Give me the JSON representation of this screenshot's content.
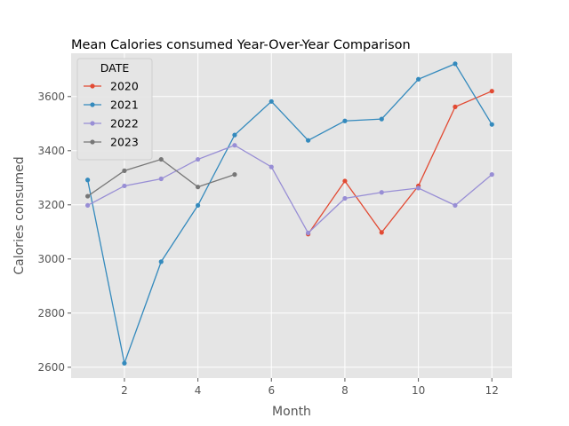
{
  "chart_data": {
    "type": "line",
    "title": "Mean  Calories consumed Year-Over-Year Comparison",
    "xlabel": "Month",
    "ylabel": "Calories consumed",
    "xlim": [
      0.55,
      12.55
    ],
    "ylim": [
      2560,
      3760
    ],
    "xticks": [
      2,
      4,
      6,
      8,
      10,
      12
    ],
    "yticks": [
      2600,
      2800,
      3000,
      3200,
      3400,
      3600
    ],
    "grid": true,
    "legend": {
      "title": "DATE",
      "placement": "upper-left"
    },
    "series": [
      {
        "name": "2020",
        "color": "#E24A33",
        "x": [
          7,
          8,
          9,
          10,
          11,
          12
        ],
        "values": [
          3092,
          3288,
          3098,
          3270,
          3562,
          3620
        ]
      },
      {
        "name": "2021",
        "color": "#348ABD",
        "x": [
          1,
          2,
          3,
          4,
          5,
          6,
          7,
          8,
          9,
          10,
          11,
          12
        ],
        "values": [
          3292,
          2615,
          2990,
          3198,
          3458,
          3582,
          3438,
          3510,
          3517,
          3664,
          3721,
          3497
        ]
      },
      {
        "name": "2022",
        "color": "#988ED5",
        "x": [
          1,
          2,
          3,
          4,
          5,
          6,
          7,
          8,
          9,
          10,
          11,
          12
        ],
        "values": [
          3198,
          3270,
          3296,
          3368,
          3420,
          3340,
          3096,
          3224,
          3246,
          3262,
          3198,
          3312
        ]
      },
      {
        "name": "2023",
        "color": "#777777",
        "x": [
          1,
          2,
          3,
          4,
          5
        ],
        "values": [
          3232,
          3326,
          3368,
          3266,
          3312
        ]
      }
    ]
  }
}
